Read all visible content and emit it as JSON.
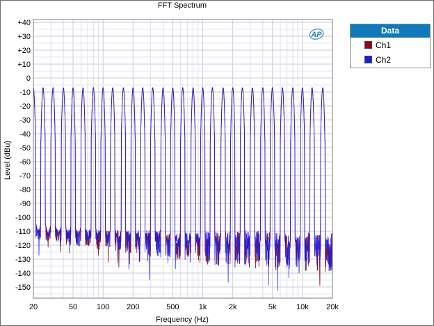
{
  "chart_data": {
    "type": "line",
    "title": "FFT Spectrum",
    "xlabel": "Frequency (Hz)",
    "ylabel": "Level (dBu)",
    "x_scale": "log",
    "xlim": [
      20,
      20000
    ],
    "ylim": [
      -158,
      42
    ],
    "grid": true,
    "x_ticks": [
      20,
      50,
      100,
      200,
      500,
      1000,
      2000,
      5000,
      10000,
      20000
    ],
    "x_tick_labels": [
      "20",
      "50",
      "100",
      "200",
      "500",
      "1k",
      "2k",
      "5k",
      "10k",
      "20k"
    ],
    "y_ticks": [
      40,
      30,
      20,
      10,
      0,
      -10,
      -20,
      -30,
      -40,
      -50,
      -60,
      -70,
      -80,
      -90,
      -100,
      -110,
      -120,
      -130,
      -140,
      -150
    ],
    "y_tick_labels": [
      "+40",
      "+30",
      "+20",
      "+10",
      "0",
      "-10",
      "-20",
      "-30",
      "-40",
      "-50",
      "-60",
      "-70",
      "-80",
      "-90",
      "-100",
      "-110",
      "-120",
      "-130",
      "-140",
      "-150"
    ],
    "tones_hz": [
      20,
      25,
      31.5,
      40,
      50,
      63,
      80,
      100,
      125,
      160,
      200,
      250,
      315,
      400,
      500,
      630,
      800,
      1000,
      1250,
      1600,
      2000,
      2500,
      3150,
      4000,
      5000,
      6300,
      8000,
      10000,
      12500,
      16000
    ],
    "tone_level_dbu": -7,
    "noise_floor_dbu": [
      [
        20,
        -112
      ],
      [
        100,
        -116
      ],
      [
        1000,
        -122
      ],
      [
        5000,
        -124
      ],
      [
        20000,
        -125
      ]
    ],
    "legend_position": "right",
    "series": [
      {
        "name": "Ch1",
        "color": "#8b0a14"
      },
      {
        "name": "Ch2",
        "color": "#1a1ae6"
      }
    ]
  },
  "logo_text": "AP",
  "legend": {
    "title": "Data",
    "items": [
      "Ch1",
      "Ch2"
    ]
  }
}
